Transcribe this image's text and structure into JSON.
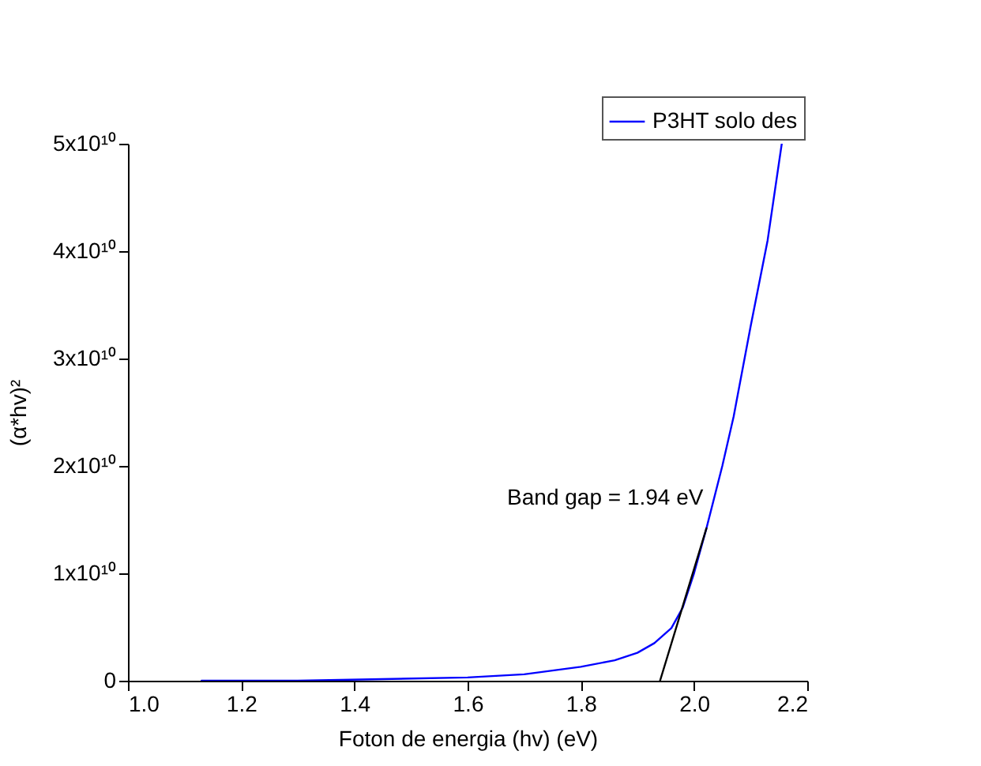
{
  "chart_data": {
    "type": "line",
    "xlabel": "Foton de energia (hv) (eV)",
    "ylabel": "(α*hv)²",
    "xlim": [
      1.0,
      2.2
    ],
    "xticks": [
      {
        "value": 1.0,
        "label": "1.0"
      },
      1.2,
      1.4,
      1.6,
      1.8,
      {
        "value": 2.0,
        "label": "2.0"
      },
      2.2
    ],
    "ylim": [
      0,
      50000000000
    ],
    "yticks": [
      0,
      {
        "value": 10000000000,
        "label": "1x10¹⁰"
      },
      {
        "value": 20000000000,
        "label": "2x10¹⁰"
      },
      {
        "value": 30000000000,
        "label": "3x10¹⁰"
      },
      {
        "value": 40000000000,
        "label": "4x10¹⁰"
      },
      {
        "value": 50000000000,
        "label": "5x10¹⁰"
      }
    ],
    "legend": "top right",
    "grid": false,
    "series": [
      {
        "name": "P3HT solo des",
        "color": "#0000ff",
        "x": [
          1.13,
          1.3,
          1.5,
          1.6,
          1.7,
          1.8,
          1.86,
          1.9,
          1.93,
          1.96,
          1.98,
          2.0,
          2.022,
          2.05,
          2.07,
          2.1,
          2.13,
          2.155
        ],
        "values": [
          0,
          0,
          200000000,
          300000000,
          600000000,
          1300000000,
          1900000000,
          2600000000,
          3500000000,
          4900000000,
          6800000000,
          10000000000,
          14200000000,
          20000000000,
          24600000000,
          33000000000,
          41000000000,
          50000000000
        ]
      },
      {
        "type": "line",
        "color": "#000000",
        "x": [
          1.94,
          2.022
        ],
        "values": [
          0,
          14200000000
        ]
      }
    ],
    "annotations": [
      {
        "text": "Band gap = 1.94 eV",
        "x": 2.022,
        "y": 14200000000
      }
    ]
  }
}
